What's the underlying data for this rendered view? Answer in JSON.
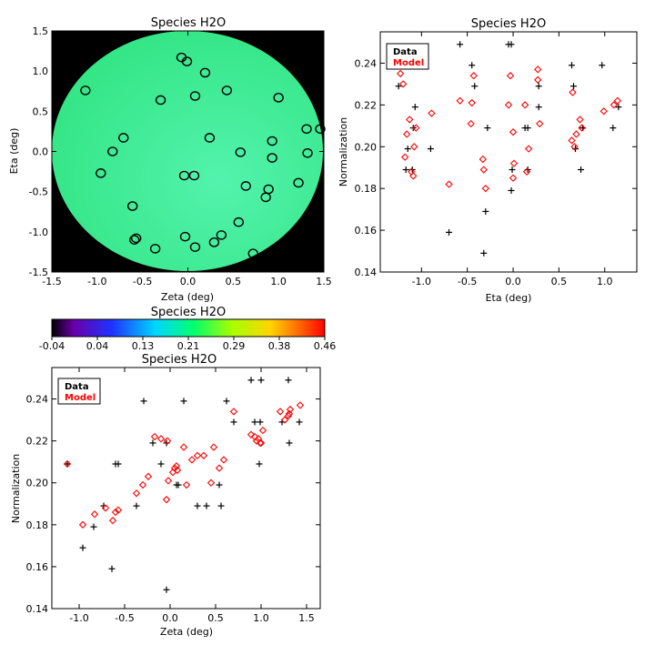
{
  "colors": {
    "background": "#ffffff",
    "map_fill_outer": "#2ee37e",
    "map_fill_inner": "#53f3ad",
    "map_background": "#000000",
    "data_marker": "#000000",
    "model_marker": "#ff0000"
  },
  "chart_data": [
    {
      "id": "map",
      "type": "scatter",
      "title": "Species H2O",
      "xlabel": "Zeta (deg)",
      "ylabel": "Eta (deg)",
      "xlim": [
        -1.5,
        1.5
      ],
      "ylim": [
        -1.5,
        1.5
      ],
      "xticks": [
        "-1.5",
        "-1.0",
        "-0.5",
        "0.0",
        "0.5",
        "1.0",
        "1.5"
      ],
      "yticks": [
        "-1.5",
        "-1.0",
        "-0.5",
        "0.0",
        "0.5",
        "1.0",
        "1.5"
      ],
      "grid": false,
      "background": "filled circle of interpolated H2O normalization on black",
      "points": [
        {
          "x": -0.07,
          "y": 1.17
        },
        {
          "x": -0.01,
          "y": 1.12
        },
        {
          "x": 0.19,
          "y": 0.98
        },
        {
          "x": -1.13,
          "y": 0.76
        },
        {
          "x": 0.43,
          "y": 0.76
        },
        {
          "x": 0.08,
          "y": 0.69
        },
        {
          "x": -0.3,
          "y": 0.64
        },
        {
          "x": 1.0,
          "y": 0.67
        },
        {
          "x": -0.71,
          "y": 0.17
        },
        {
          "x": 0.24,
          "y": 0.17
        },
        {
          "x": 1.31,
          "y": 0.28
        },
        {
          "x": 1.46,
          "y": 0.28
        },
        {
          "x": 0.93,
          "y": 0.13
        },
        {
          "x": -0.83,
          "y": 0.0
        },
        {
          "x": 0.58,
          "y": -0.01
        },
        {
          "x": 1.32,
          "y": -0.02
        },
        {
          "x": 0.93,
          "y": -0.08
        },
        {
          "x": -0.96,
          "y": -0.27
        },
        {
          "x": -0.04,
          "y": -0.3
        },
        {
          "x": 0.07,
          "y": -0.3
        },
        {
          "x": 0.64,
          "y": -0.43
        },
        {
          "x": 0.89,
          "y": -0.47
        },
        {
          "x": 1.22,
          "y": -0.39
        },
        {
          "x": 0.86,
          "y": -0.57
        },
        {
          "x": -0.61,
          "y": -0.68
        },
        {
          "x": 0.56,
          "y": -0.88
        },
        {
          "x": -0.57,
          "y": -1.08
        },
        {
          "x": -0.59,
          "y": -1.1
        },
        {
          "x": -0.03,
          "y": -1.06
        },
        {
          "x": 0.37,
          "y": -1.04
        },
        {
          "x": 0.29,
          "y": -1.13
        },
        {
          "x": 0.08,
          "y": -1.19
        },
        {
          "x": -0.36,
          "y": -1.21
        },
        {
          "x": 0.72,
          "y": -1.27
        }
      ]
    },
    {
      "id": "colorbar",
      "type": "heatmap",
      "title": "Species H2O",
      "colormap": "rainbow",
      "tick_labels": [
        "-0.04",
        "0.04",
        "0.13",
        "0.21",
        "0.29",
        "0.38",
        "0.46"
      ],
      "range": [
        -0.04,
        0.46
      ]
    },
    {
      "id": "eta",
      "type": "scatter",
      "title": "Species H2O",
      "xlabel": "Eta (deg)",
      "ylabel": "Normalization",
      "xlim": [
        -1.45,
        1.35
      ],
      "ylim": [
        0.14,
        0.255
      ],
      "xticks": [
        {
          "v": -1.0,
          "t": "-1.0"
        },
        {
          "v": -0.5,
          "t": "-0.5"
        },
        {
          "v": 0.0,
          "t": "0.0"
        },
        {
          "v": 0.5,
          "t": "0.5"
        },
        {
          "v": 1.0,
          "t": "1.0"
        }
      ],
      "yticks": [
        {
          "v": 0.14,
          "t": "0.14"
        },
        {
          "v": 0.16,
          "t": "0.16"
        },
        {
          "v": 0.18,
          "t": "0.18"
        },
        {
          "v": 0.2,
          "t": "0.20"
        },
        {
          "v": 0.22,
          "t": "0.22"
        },
        {
          "v": 0.24,
          "t": "0.24"
        }
      ],
      "legend": {
        "position": "top-left",
        "entries": [
          "Data",
          "Model"
        ]
      },
      "series": [
        {
          "name": "Data",
          "marker": "plus",
          "color": "#000000",
          "points": [
            [
              -1.25,
              0.229
            ],
            [
              -1.22,
              0.239
            ],
            [
              -1.17,
              0.189
            ],
            [
              -1.15,
              0.199
            ],
            [
              -1.1,
              0.189
            ],
            [
              -1.09,
              0.209
            ],
            [
              -1.07,
              0.219
            ],
            [
              -0.9,
              0.199
            ],
            [
              -0.7,
              0.159
            ],
            [
              -0.58,
              0.249
            ],
            [
              -0.45,
              0.239
            ],
            [
              -0.42,
              0.229
            ],
            [
              -0.32,
              0.149
            ],
            [
              -0.3,
              0.169
            ],
            [
              -0.28,
              0.209
            ],
            [
              -0.05,
              0.249
            ],
            [
              -0.02,
              0.249
            ],
            [
              -0.02,
              0.179
            ],
            [
              -0.01,
              0.189
            ],
            [
              0.13,
              0.209
            ],
            [
              0.16,
              0.189
            ],
            [
              0.16,
              0.209
            ],
            [
              0.28,
              0.219
            ],
            [
              0.28,
              0.229
            ],
            [
              0.64,
              0.239
            ],
            [
              0.66,
              0.229
            ],
            [
              0.68,
              0.199
            ],
            [
              0.74,
              0.189
            ],
            [
              0.76,
              0.209
            ],
            [
              0.97,
              0.239
            ],
            [
              1.09,
              0.209
            ],
            [
              1.15,
              0.219
            ]
          ]
        },
        {
          "name": "Model",
          "marker": "diamond",
          "color": "#ff0000",
          "points": [
            [
              -1.23,
              0.235
            ],
            [
              -1.2,
              0.23
            ],
            [
              -1.18,
              0.195
            ],
            [
              -1.16,
              0.206
            ],
            [
              -1.13,
              0.213
            ],
            [
              -1.11,
              0.188
            ],
            [
              -1.09,
              0.186
            ],
            [
              -1.08,
              0.2
            ],
            [
              -1.06,
              0.209
            ],
            [
              -0.89,
              0.216
            ],
            [
              -0.7,
              0.182
            ],
            [
              -0.58,
              0.222
            ],
            [
              -0.46,
              0.211
            ],
            [
              -0.45,
              0.221
            ],
            [
              -0.43,
              0.234
            ],
            [
              -0.33,
              0.194
            ],
            [
              -0.32,
              0.189
            ],
            [
              -0.3,
              0.18
            ],
            [
              -0.05,
              0.22
            ],
            [
              -0.03,
              0.234
            ],
            [
              0.0,
              0.207
            ],
            [
              0.0,
              0.185
            ],
            [
              0.01,
              0.192
            ],
            [
              0.13,
              0.22
            ],
            [
              0.15,
              0.188
            ],
            [
              0.17,
              0.199
            ],
            [
              0.27,
              0.237
            ],
            [
              0.27,
              0.232
            ],
            [
              0.29,
              0.211
            ],
            [
              0.64,
              0.203
            ],
            [
              0.65,
              0.226
            ],
            [
              0.67,
              0.2
            ],
            [
              0.69,
              0.206
            ],
            [
              0.73,
              0.213
            ],
            [
              0.75,
              0.209
            ],
            [
              0.99,
              0.217
            ],
            [
              1.1,
              0.22
            ],
            [
              1.14,
              0.222
            ]
          ]
        }
      ]
    },
    {
      "id": "zeta",
      "type": "scatter",
      "title": "Species H2O",
      "xlabel": "Zeta (deg)",
      "ylabel": "Normalization",
      "xlim": [
        -1.3,
        1.65
      ],
      "ylim": [
        0.14,
        0.255
      ],
      "xticks": [
        {
          "v": -1.0,
          "t": "-1.0"
        },
        {
          "v": -0.5,
          "t": "-0.5"
        },
        {
          "v": 0.0,
          "t": "0.0"
        },
        {
          "v": 0.5,
          "t": "0.5"
        },
        {
          "v": 1.0,
          "t": "1.0"
        },
        {
          "v": 1.5,
          "t": "1.5"
        }
      ],
      "yticks": [
        {
          "v": 0.14,
          "t": "0.14"
        },
        {
          "v": 0.16,
          "t": "0.16"
        },
        {
          "v": 0.18,
          "t": "0.18"
        },
        {
          "v": 0.2,
          "t": "0.20"
        },
        {
          "v": 0.22,
          "t": "0.22"
        },
        {
          "v": 0.24,
          "t": "0.24"
        }
      ],
      "legend": {
        "position": "top-left",
        "entries": [
          "Data",
          "Model"
        ]
      },
      "series": [
        {
          "name": "Data",
          "marker": "plus",
          "color": "#000000",
          "points": [
            [
              -1.13,
              0.209
            ],
            [
              -0.96,
              0.169
            ],
            [
              -0.84,
              0.179
            ],
            [
              -0.73,
              0.189
            ],
            [
              -0.64,
              0.159
            ],
            [
              -0.6,
              0.209
            ],
            [
              -0.57,
              0.209
            ],
            [
              -0.37,
              0.189
            ],
            [
              -0.29,
              0.239
            ],
            [
              -0.19,
              0.219
            ],
            [
              -0.1,
              0.209
            ],
            [
              -0.04,
              0.219
            ],
            [
              -0.04,
              0.149
            ],
            [
              0.07,
              0.199
            ],
            [
              0.09,
              0.199
            ],
            [
              0.15,
              0.239
            ],
            [
              0.3,
              0.189
            ],
            [
              0.4,
              0.189
            ],
            [
              0.54,
              0.199
            ],
            [
              0.56,
              0.189
            ],
            [
              0.62,
              0.239
            ],
            [
              0.7,
              0.229
            ],
            [
              0.89,
              0.249
            ],
            [
              0.93,
              0.229
            ],
            [
              0.98,
              0.209
            ],
            [
              0.99,
              0.229
            ],
            [
              1.0,
              0.249
            ],
            [
              1.23,
              0.229
            ],
            [
              1.3,
              0.249
            ],
            [
              1.31,
              0.219
            ],
            [
              1.42,
              0.229
            ]
          ]
        },
        {
          "name": "Model",
          "marker": "diamond",
          "color": "#ff0000",
          "points": [
            [
              -1.13,
              0.209
            ],
            [
              -0.96,
              0.18
            ],
            [
              -0.83,
              0.185
            ],
            [
              -0.71,
              0.188
            ],
            [
              -0.63,
              0.182
            ],
            [
              -0.6,
              0.186
            ],
            [
              -0.57,
              0.187
            ],
            [
              -0.37,
              0.195
            ],
            [
              -0.3,
              0.199
            ],
            [
              -0.24,
              0.203
            ],
            [
              -0.17,
              0.222
            ],
            [
              -0.1,
              0.221
            ],
            [
              -0.04,
              0.192
            ],
            [
              -0.03,
              0.22
            ],
            [
              -0.02,
              0.201
            ],
            [
              0.03,
              0.205
            ],
            [
              0.05,
              0.207
            ],
            [
              0.07,
              0.208
            ],
            [
              0.08,
              0.206
            ],
            [
              0.15,
              0.217
            ],
            [
              0.18,
              0.199
            ],
            [
              0.24,
              0.211
            ],
            [
              0.3,
              0.213
            ],
            [
              0.37,
              0.213
            ],
            [
              0.45,
              0.2
            ],
            [
              0.48,
              0.217
            ],
            [
              0.54,
              0.207
            ],
            [
              0.59,
              0.211
            ],
            [
              0.7,
              0.234
            ],
            [
              0.89,
              0.223
            ],
            [
              0.93,
              0.222
            ],
            [
              0.95,
              0.22
            ],
            [
              0.97,
              0.221
            ],
            [
              0.99,
              0.219
            ],
            [
              1.0,
              0.219
            ],
            [
              1.02,
              0.225
            ],
            [
              1.21,
              0.234
            ],
            [
              1.26,
              0.23
            ],
            [
              1.3,
              0.232
            ],
            [
              1.31,
              0.233
            ],
            [
              1.32,
              0.235
            ],
            [
              1.43,
              0.237
            ]
          ]
        }
      ]
    }
  ]
}
